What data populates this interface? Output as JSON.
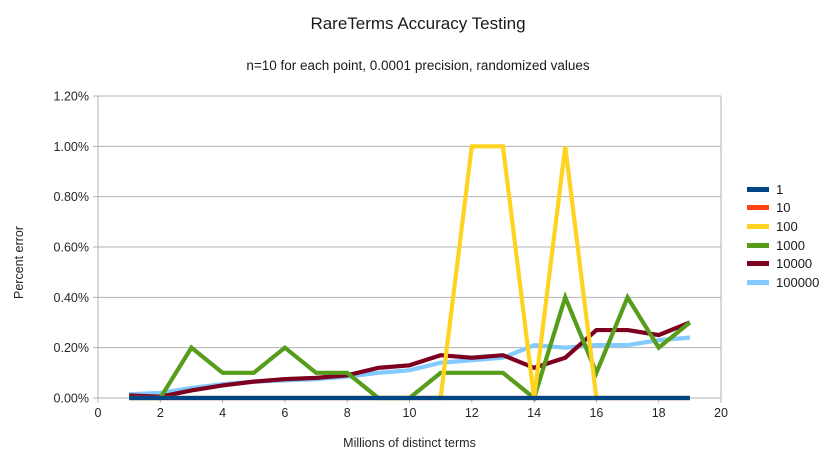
{
  "title": "RareTerms Accuracy Testing",
  "subtitle": "n=10 for each point, 0.0001 precision, randomized values",
  "colors": {
    "background": "#ffffff",
    "axis_line": "#b3b3b3",
    "gridline": "#b3b3b3",
    "text": "#262626"
  },
  "chart_data": {
    "type": "line",
    "title": "RareTerms Accuracy Testing",
    "subtitle": "n=10 for each point, 0.0001 precision, randomized values",
    "xlabel": "Millions of distinct terms",
    "ylabel": "Percent error",
    "xlim": [
      0,
      20
    ],
    "ylim_percent": [
      0,
      1.2
    ],
    "x_ticks": [
      0,
      2,
      4,
      6,
      8,
      10,
      12,
      14,
      16,
      18,
      20
    ],
    "y_ticks_percent": [
      0,
      0.2,
      0.4,
      0.6,
      0.8,
      1.0,
      1.2
    ],
    "y_tick_labels": [
      "0.00%",
      "0.20%",
      "0.40%",
      "0.60%",
      "0.80%",
      "1.00%",
      "1.20%"
    ],
    "grid": "horizontal",
    "legend_position": "right",
    "x": [
      1,
      2,
      3,
      4,
      5,
      6,
      7,
      8,
      9,
      10,
      11,
      12,
      13,
      14,
      15,
      16,
      17,
      18,
      19
    ],
    "series": [
      {
        "name": "1",
        "color": "#004586",
        "values_percent": [
          0,
          0,
          0,
          0,
          0,
          0,
          0,
          0,
          0,
          0,
          0,
          0,
          0,
          0,
          0,
          0,
          0,
          0,
          0
        ]
      },
      {
        "name": "10",
        "color": "#FF420E",
        "values_percent": [
          0,
          0,
          0,
          0,
          0,
          0,
          0,
          0,
          0,
          0,
          0,
          0,
          0,
          0,
          0,
          0,
          0,
          0,
          0
        ]
      },
      {
        "name": "100",
        "color": "#FFD320",
        "values_percent": [
          0,
          0,
          0,
          0,
          0,
          0,
          0,
          0,
          0,
          0,
          0,
          1.0,
          1.0,
          0,
          1.0,
          0,
          0,
          0,
          0
        ]
      },
      {
        "name": "1000",
        "color": "#579D1C",
        "values_percent": [
          0,
          0,
          0.2,
          0.1,
          0.1,
          0.2,
          0.1,
          0.1,
          0,
          0,
          0.1,
          0.1,
          0.1,
          0,
          0.4,
          0.1,
          0.4,
          0.2,
          0.3
        ]
      },
      {
        "name": "10000",
        "color": "#7E0021",
        "values_percent": [
          0.01,
          0.005,
          0.03,
          0.05,
          0.065,
          0.075,
          0.08,
          0.09,
          0.12,
          0.13,
          0.17,
          0.16,
          0.17,
          0.12,
          0.16,
          0.27,
          0.27,
          0.25,
          0.3
        ]
      },
      {
        "name": "100000",
        "color": "#83CAFF",
        "values_percent": [
          0.015,
          0.02,
          0.04,
          0.055,
          0.065,
          0.07,
          0.075,
          0.085,
          0.1,
          0.11,
          0.14,
          0.15,
          0.16,
          0.21,
          0.2,
          0.21,
          0.21,
          0.23,
          0.24
        ]
      }
    ]
  }
}
